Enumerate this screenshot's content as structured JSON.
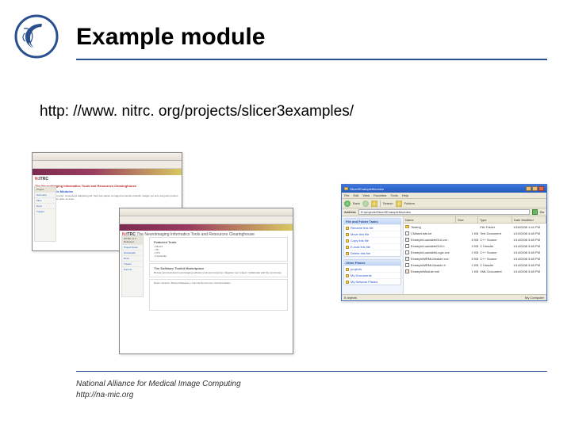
{
  "slide": {
    "title": "Example module",
    "url": "http: //www. nitrc. org/projects/slicer3examples/",
    "footer_line1": "National Alliance for Medical Image Computing",
    "footer_line2": "http://na-mic.org"
  },
  "logo": {
    "ring_color": "#2a4f8f",
    "head_color": "#2a4f8f"
  },
  "browser1": {
    "brand": "N:ITRC",
    "headline": "The Neuroimaging Informatics Tools and Resources Clearinghouse",
    "subhead": "Slicer3 Example Modules"
  },
  "browser2": {
    "brand": "N:ITRC",
    "headline": "The Neuroimaging Informatics Tools and Resources Clearinghouse",
    "boxtitle": "The Software Toolkit Marketplace",
    "sidebar_header": "NITRC v1.2 Released",
    "sidebar_items": [
      "Project News",
      "Downloads",
      "Docs",
      "Tracker",
      "Forums"
    ]
  },
  "explorer": {
    "title": "Slicer3ExampleModules",
    "menu": [
      "File",
      "Edit",
      "View",
      "Favorites",
      "Tools",
      "Help"
    ],
    "toolbar": {
      "back": "Back",
      "search": "Search",
      "folders": "Folders"
    },
    "address_label": "Address",
    "address_value": "D:\\projects\\Slicer3ExampleModules",
    "go": "Go",
    "left_panes": [
      {
        "header": "File and Folder Tasks",
        "items": [
          "Rename this file",
          "Move this file",
          "Copy this file",
          "E-mail this file",
          "Delete this file"
        ]
      },
      {
        "header": "Other Places",
        "items": [
          "projects",
          "My Documents",
          "My Network Places"
        ]
      }
    ],
    "columns": [
      "Name",
      "Size",
      "Type",
      "Date Modified"
    ],
    "rows": [
      {
        "icon": "folder",
        "name": "Testing",
        "size": "",
        "type": "File Folder",
        "date": "1/16/2008 1:44 PM"
      },
      {
        "icon": "txt",
        "name": "CMakeLists.txt",
        "size": "1 KB",
        "type": "Text Document",
        "date": "1/10/2008 4:48 PM"
      },
      {
        "icon": "cpp",
        "name": "ExampleLoadableGUI.cxx",
        "size": "6 KB",
        "type": "C++ Source",
        "date": "1/14/2008 3:48 PM"
      },
      {
        "icon": "txt",
        "name": "ExampleLoadableGUI.h",
        "size": "3 KB",
        "type": "C Header",
        "date": "1/14/2008 3:48 PM"
      },
      {
        "icon": "txt",
        "name": "ExampleLoadableLogic.cxx",
        "size": "2 KB",
        "type": "C++ Source",
        "date": "1/14/2008 3:48 PM"
      },
      {
        "icon": "cpp",
        "name": "ExampleMRMLModule.cxx",
        "size": "5 KB",
        "type": "C++ Source",
        "date": "1/14/2008 3:48 PM"
      },
      {
        "icon": "txt",
        "name": "ExampleMRMLModule.h",
        "size": "2 KB",
        "type": "C Header",
        "date": "1/14/2008 3:48 PM"
      },
      {
        "icon": "xml",
        "name": "ExampleModule.xml",
        "size": "1 KB",
        "type": "XML Document",
        "date": "1/14/2008 3:48 PM"
      }
    ],
    "status_left": "8 objects",
    "status_right": "My Computer"
  }
}
